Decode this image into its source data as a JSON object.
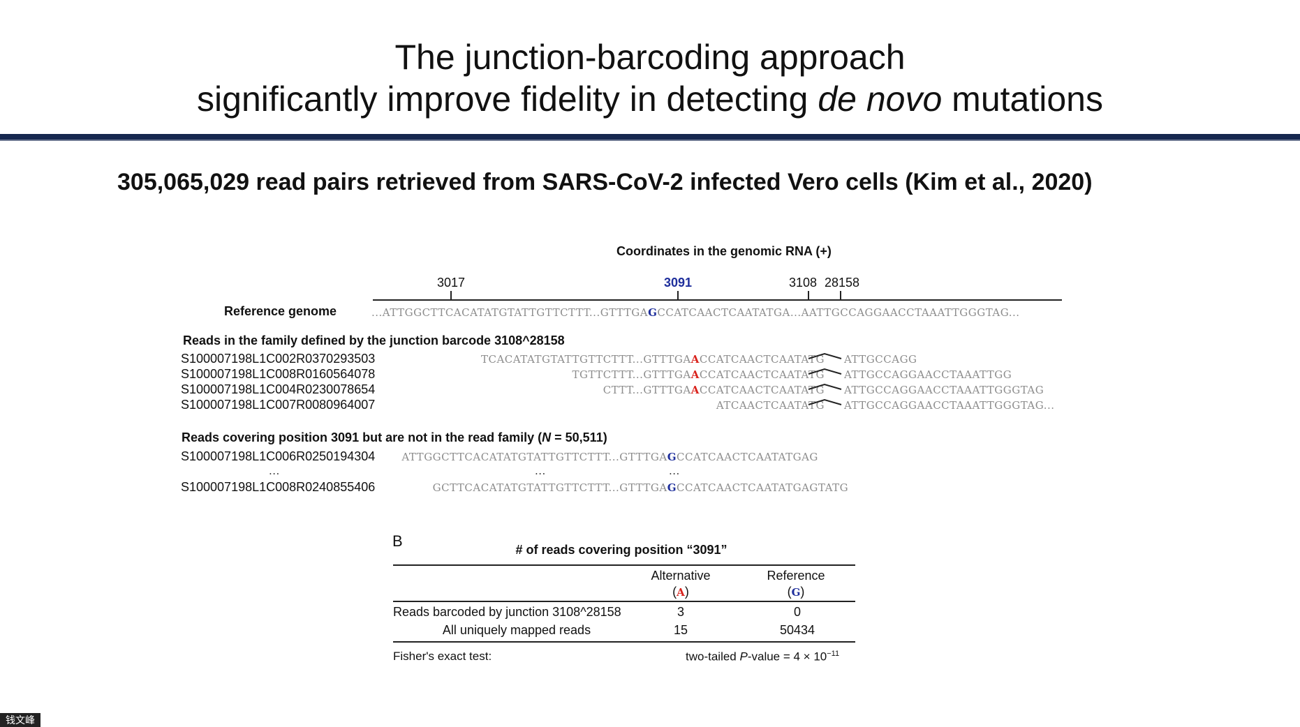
{
  "slide": {
    "title_line1": "The junction-barcoding approach",
    "title_line2_pre": "significantly improve fidelity in detecting ",
    "title_line2_em": "de novo",
    "title_line2_post": " mutations",
    "subtitle": "305,065,029 read pairs retrieved from SARS-CoV-2 infected Vero cells (Kim et al., 2020)"
  },
  "panel_a": {
    "coords_title": "Coordinates in the genomic RNA (+)",
    "ticks": [
      "3017",
      "3091",
      "3108",
      "28158"
    ],
    "reference_label": "Reference genome",
    "reference_seq": {
      "p1": "...ATTGGCTTCACATATGTATTGTTCTTT...GTTTGA",
      "base": "G",
      "p2": "CCATCAACTCAATATGA...AATTGCCAGGAACCTAAATTGGGTAG..."
    },
    "family_heading": "Reads in the family defined by the junction barcode 3108^28158",
    "family_reads": [
      {
        "id": "S100007198L1C002R0370293503",
        "left": "TCACATATGTATTGTTCTTT...GTTTGA",
        "base": "A",
        "mid": "CCATCAACTCAATATG",
        "right": "ATTGCCAGG"
      },
      {
        "id": "S100007198L1C008R0160564078",
        "left": "TGTTCTTT...GTTTGA",
        "base": "A",
        "mid": "CCATCAACTCAATATG",
        "right": "ATTGCCAGGAACCTAAATTGG"
      },
      {
        "id": "S100007198L1C004R0230078654",
        "left": "CTTT...GTTTGA",
        "base": "A",
        "mid": "CCATCAACTCAATATG",
        "right": "ATTGCCAGGAACCTAAATTGGGTAG"
      },
      {
        "id": "S100007198L1C007R0080964007",
        "left": "",
        "base": "",
        "mid": "ATCAACTCAATATG",
        "right": "ATTGCCAGGAACCTAAATTGGGTAG..."
      }
    ],
    "nonfamily_heading_pre": "Reads covering position 3091 but are not in the read family (",
    "nonfamily_heading_n": "N",
    "nonfamily_heading_post": " = 50,511)",
    "nonfamily_reads": [
      {
        "id": "S100007198L1C006R0250194304",
        "left": "ATTGGCTTCACATATGTATTGTTCTTT...GTTTGA",
        "base": "G",
        "right": "CCATCAACTCAATATGAG"
      },
      {
        "id": "S100007198L1C008R0240855406",
        "left": "GCTTCACATATGTATTGTTCTTT...GTTTGA",
        "base": "G",
        "right": "CCATCAACTCAATATGAGTATG"
      }
    ],
    "ellipsis": "..."
  },
  "panel_b": {
    "label": "B",
    "table_title": "# of reads covering position “3091”",
    "col_alt": "Alternative",
    "col_alt_base": "A",
    "col_ref": "Reference",
    "col_ref_base": "G",
    "rows": [
      {
        "label": "Reads barcoded by junction 3108^28158",
        "alt": "3",
        "ref": "0"
      },
      {
        "label": "All uniquely mapped reads",
        "alt": "15",
        "ref": "50434"
      }
    ],
    "test_label": "Fisher's exact test:",
    "pvalue_pre": "two-tailed ",
    "pvalue_p": "P",
    "pvalue_mid": "-value = 4 × 10",
    "pvalue_exp": "−11"
  },
  "watermark": "钱文峰",
  "colors": {
    "title_rule": "#16284f",
    "mutation": "#d9231d",
    "reference_base": "#1f2f9c"
  }
}
